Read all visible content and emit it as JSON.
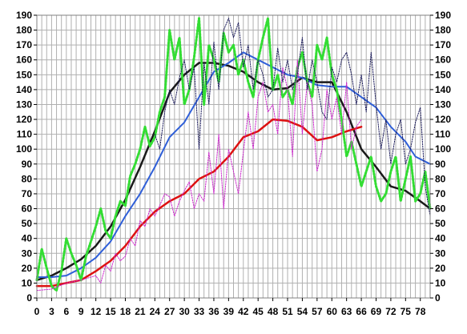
{
  "chart_data": {
    "type": "line",
    "title": "",
    "xlabel": "",
    "ylabel": "",
    "xlim": [
      0,
      80
    ],
    "ylim": [
      0,
      190
    ],
    "x_tick_values": [
      0,
      3,
      6,
      9,
      12,
      15,
      18,
      21,
      24,
      27,
      30,
      33,
      36,
      39,
      42,
      45,
      48,
      51,
      54,
      57,
      60,
      63,
      66,
      69,
      72,
      75,
      78
    ],
    "y_tick_values": [
      0,
      10,
      20,
      30,
      40,
      50,
      60,
      70,
      80,
      90,
      100,
      110,
      120,
      130,
      140,
      150,
      160,
      170,
      180,
      190
    ],
    "grid": true,
    "right_axis_labels": true,
    "legend": "none",
    "series": [
      {
        "color": "#1a1a1a",
        "style": "solid-thick",
        "points": [
          [
            0,
            12
          ],
          [
            3,
            15
          ],
          [
            6,
            20
          ],
          [
            9,
            26
          ],
          [
            12,
            35
          ],
          [
            15,
            48
          ],
          [
            18,
            66
          ],
          [
            21,
            88
          ],
          [
            24,
            112
          ],
          [
            27,
            138
          ],
          [
            30,
            150
          ],
          [
            33,
            158
          ],
          [
            36,
            158
          ],
          [
            39,
            156
          ],
          [
            42,
            152
          ],
          [
            45,
            145
          ],
          [
            48,
            140
          ],
          [
            51,
            141
          ],
          [
            54,
            148
          ],
          [
            57,
            145
          ],
          [
            60,
            145
          ],
          [
            63,
            125
          ],
          [
            66,
            100
          ],
          [
            69,
            88
          ],
          [
            72,
            75
          ],
          [
            75,
            72
          ],
          [
            78,
            65
          ],
          [
            80,
            60
          ]
        ]
      },
      {
        "color": "#2f5fd8",
        "style": "solid",
        "points": [
          [
            0,
            14
          ],
          [
            3,
            14
          ],
          [
            6,
            15
          ],
          [
            9,
            20
          ],
          [
            12,
            27
          ],
          [
            15,
            38
          ],
          [
            18,
            55
          ],
          [
            21,
            70
          ],
          [
            24,
            88
          ],
          [
            27,
            108
          ],
          [
            30,
            118
          ],
          [
            33,
            135
          ],
          [
            36,
            152
          ],
          [
            39,
            158
          ],
          [
            42,
            165
          ],
          [
            45,
            160
          ],
          [
            48,
            155
          ],
          [
            51,
            150
          ],
          [
            54,
            148
          ],
          [
            57,
            143
          ],
          [
            60,
            142
          ],
          [
            63,
            142
          ],
          [
            66,
            135
          ],
          [
            69,
            128
          ],
          [
            72,
            115
          ],
          [
            75,
            105
          ],
          [
            77,
            95
          ],
          [
            80,
            90
          ]
        ]
      },
      {
        "color": "#dd1111",
        "style": "solid-thick",
        "points": [
          [
            0,
            8
          ],
          [
            3,
            8
          ],
          [
            6,
            10
          ],
          [
            9,
            12
          ],
          [
            12,
            18
          ],
          [
            15,
            25
          ],
          [
            18,
            35
          ],
          [
            21,
            48
          ],
          [
            24,
            58
          ],
          [
            27,
            65
          ],
          [
            30,
            70
          ],
          [
            33,
            80
          ],
          [
            36,
            85
          ],
          [
            39,
            95
          ],
          [
            42,
            108
          ],
          [
            45,
            112
          ],
          [
            48,
            120
          ],
          [
            51,
            119
          ],
          [
            54,
            115
          ],
          [
            57,
            106
          ],
          [
            60,
            108
          ],
          [
            63,
            112
          ],
          [
            66,
            115
          ]
        ]
      },
      {
        "color": "#33dd33",
        "style": "dotted-thick",
        "points": [
          [
            0,
            12
          ],
          [
            1,
            33
          ],
          [
            2,
            20
          ],
          [
            3,
            8
          ],
          [
            4,
            5
          ],
          [
            5,
            18
          ],
          [
            6,
            40
          ],
          [
            7,
            30
          ],
          [
            8,
            22
          ],
          [
            9,
            12
          ],
          [
            10,
            28
          ],
          [
            11,
            38
          ],
          [
            12,
            48
          ],
          [
            13,
            60
          ],
          [
            14,
            45
          ],
          [
            15,
            40
          ],
          [
            16,
            55
          ],
          [
            17,
            65
          ],
          [
            18,
            62
          ],
          [
            19,
            82
          ],
          [
            20,
            90
          ],
          [
            21,
            100
          ],
          [
            22,
            115
          ],
          [
            23,
            102
          ],
          [
            24,
            108
          ],
          [
            25,
            125
          ],
          [
            26,
            135
          ],
          [
            27,
            180
          ],
          [
            28,
            160
          ],
          [
            29,
            175
          ],
          [
            30,
            130
          ],
          [
            31,
            140
          ],
          [
            32,
            162
          ],
          [
            33,
            188
          ],
          [
            34,
            130
          ],
          [
            35,
            170
          ],
          [
            36,
            160
          ],
          [
            37,
            145
          ],
          [
            38,
            178
          ],
          [
            39,
            165
          ],
          [
            40,
            170
          ],
          [
            41,
            150
          ],
          [
            42,
            160
          ],
          [
            43,
            145
          ],
          [
            44,
            135
          ],
          [
            45,
            160
          ],
          [
            46,
            175
          ],
          [
            47,
            188
          ],
          [
            48,
            140
          ],
          [
            49,
            150
          ],
          [
            50,
            135
          ],
          [
            51,
            140
          ],
          [
            52,
            130
          ],
          [
            53,
            155
          ],
          [
            54,
            165
          ],
          [
            55,
            145
          ],
          [
            56,
            135
          ],
          [
            57,
            170
          ],
          [
            58,
            160
          ],
          [
            59,
            175
          ],
          [
            60,
            150
          ],
          [
            61,
            140
          ],
          [
            62,
            120
          ],
          [
            63,
            95
          ],
          [
            64,
            105
          ],
          [
            65,
            90
          ],
          [
            66,
            75
          ],
          [
            67,
            85
          ],
          [
            68,
            95
          ],
          [
            69,
            75
          ],
          [
            70,
            65
          ],
          [
            71,
            70
          ],
          [
            72,
            85
          ],
          [
            73,
            95
          ],
          [
            74,
            65
          ],
          [
            75,
            80
          ],
          [
            76,
            95
          ],
          [
            77,
            65
          ],
          [
            78,
            70
          ],
          [
            79,
            85
          ],
          [
            80,
            60
          ]
        ]
      },
      {
        "color": "#cc22cc",
        "style": "dotted",
        "points": [
          [
            0,
            5
          ],
          [
            3,
            6
          ],
          [
            6,
            10
          ],
          [
            9,
            12
          ],
          [
            12,
            15
          ],
          [
            13,
            10
          ],
          [
            14,
            22
          ],
          [
            15,
            18
          ],
          [
            16,
            30
          ],
          [
            17,
            25
          ],
          [
            18,
            28
          ],
          [
            19,
            40
          ],
          [
            20,
            35
          ],
          [
            21,
            52
          ],
          [
            22,
            48
          ],
          [
            23,
            60
          ],
          [
            24,
            55
          ],
          [
            25,
            62
          ],
          [
            26,
            70
          ],
          [
            27,
            68
          ],
          [
            28,
            55
          ],
          [
            29,
            65
          ],
          [
            30,
            72
          ],
          [
            31,
            78
          ],
          [
            32,
            60
          ],
          [
            33,
            70
          ],
          [
            34,
            65
          ],
          [
            35,
            98
          ],
          [
            36,
            70
          ],
          [
            37,
            110
          ],
          [
            38,
            60
          ],
          [
            39,
            100
          ],
          [
            40,
            85
          ],
          [
            41,
            70
          ],
          [
            42,
            98
          ],
          [
            43,
            125
          ],
          [
            44,
            100
          ],
          [
            45,
            135
          ],
          [
            46,
            145
          ],
          [
            47,
            125
          ],
          [
            48,
            130
          ],
          [
            49,
            110
          ],
          [
            50,
            155
          ],
          [
            51,
            140
          ],
          [
            52,
            95
          ],
          [
            53,
            160
          ],
          [
            54,
            110
          ],
          [
            55,
            145
          ],
          [
            56,
            130
          ],
          [
            57,
            85
          ],
          [
            58,
            100
          ],
          [
            59,
            140
          ],
          [
            60,
            120
          ],
          [
            61,
            135
          ],
          [
            62,
            110
          ],
          [
            63,
            145
          ],
          [
            64,
            100
          ],
          [
            65,
            115
          ],
          [
            66,
            120
          ]
        ]
      },
      {
        "color": "#1a1a5a",
        "style": "dotted",
        "points": [
          [
            24,
            110
          ],
          [
            25,
            100
          ],
          [
            26,
            125
          ],
          [
            27,
            140
          ],
          [
            28,
            130
          ],
          [
            29,
            148
          ],
          [
            30,
            160
          ],
          [
            31,
            140
          ],
          [
            32,
            155
          ],
          [
            33,
            100
          ],
          [
            34,
            158
          ],
          [
            35,
            130
          ],
          [
            36,
            172
          ],
          [
            37,
            140
          ],
          [
            38,
            180
          ],
          [
            39,
            188
          ],
          [
            40,
            175
          ],
          [
            41,
            185
          ],
          [
            42,
            155
          ],
          [
            43,
            170
          ],
          [
            44,
            140
          ],
          [
            45,
            160
          ],
          [
            46,
            150
          ],
          [
            47,
            135
          ],
          [
            48,
            140
          ],
          [
            49,
            168
          ],
          [
            50,
            145
          ],
          [
            51,
            160
          ],
          [
            52,
            140
          ],
          [
            53,
            150
          ],
          [
            54,
            175
          ],
          [
            55,
            140
          ],
          [
            56,
            160
          ],
          [
            57,
            145
          ],
          [
            58,
            125
          ],
          [
            59,
            120
          ],
          [
            60,
            155
          ],
          [
            61,
            145
          ],
          [
            62,
            160
          ],
          [
            63,
            165
          ],
          [
            64,
            150
          ],
          [
            65,
            130
          ],
          [
            66,
            150
          ],
          [
            67,
            125
          ],
          [
            68,
            165
          ],
          [
            69,
            130
          ],
          [
            70,
            100
          ],
          [
            71,
            120
          ],
          [
            72,
            90
          ],
          [
            73,
            110
          ],
          [
            74,
            120
          ],
          [
            75,
            90
          ],
          [
            76,
            100
          ],
          [
            77,
            118
          ],
          [
            78,
            128
          ],
          [
            79,
            75
          ],
          [
            80,
            55
          ]
        ]
      }
    ]
  }
}
